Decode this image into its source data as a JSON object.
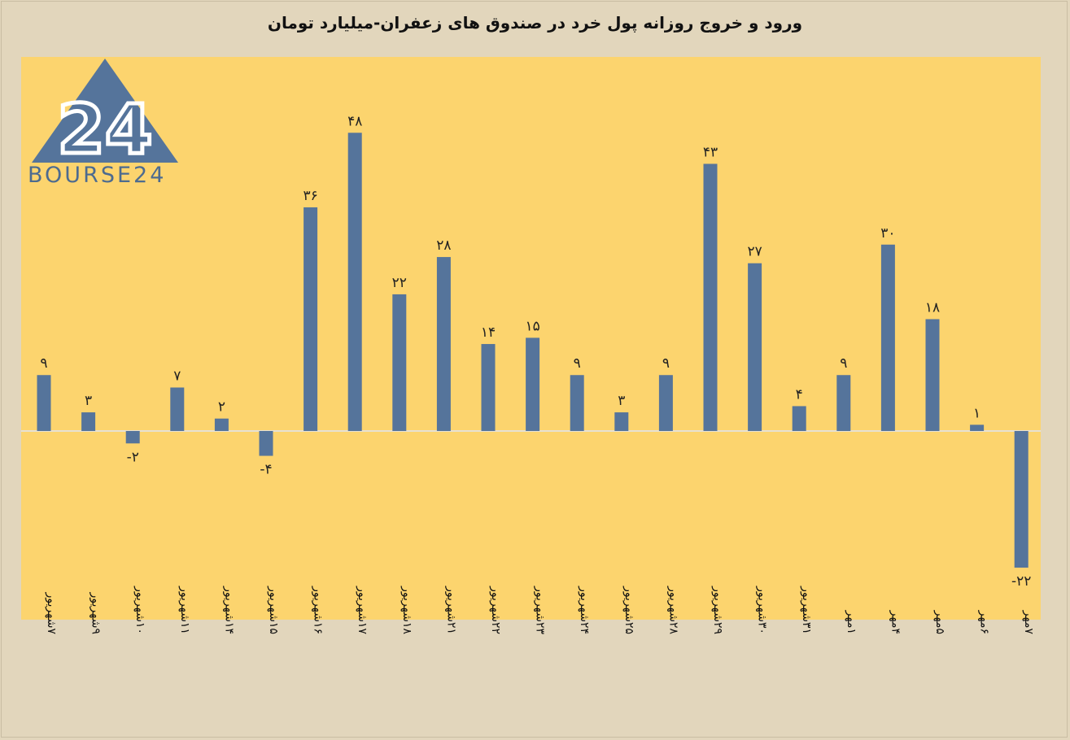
{
  "title": "ورود و خروج روزانه پول خرد در صندوق های زعفران-میلیارد تومان",
  "logo": {
    "text": "BOURSE24",
    "mark": "24"
  },
  "colors": {
    "bar": "#55749b",
    "plot_bg": "#fcd46e",
    "page_bg": "#e2d6bc"
  },
  "chart_data": {
    "type": "bar",
    "title": "ورود و خروج روزانه پول خرد در صندوق های زعفران-میلیارد تومان",
    "xlabel": "",
    "ylabel": "",
    "ylim": [
      -25,
      50
    ],
    "grid": false,
    "legend": "none",
    "categories": [
      "۷شهریور",
      "۹شهریور",
      "۱۰شهریور",
      "۱۱شهریور",
      "۱۴شهریور",
      "۱۵شهریور",
      "۱۶شهریور",
      "۱۷شهریور",
      "۱۸شهریور",
      "۲۱شهریور",
      "۲۲شهریور",
      "۲۳شهریور",
      "۲۴شهریور",
      "۲۵شهریور",
      "۲۸شهریور",
      "۲۹شهریور",
      "۳۰شهریور",
      "۳۱شهریور",
      "۱مهر",
      "۴مهر",
      "۵مهر",
      "۶مهر",
      "۷مهر"
    ],
    "values": [
      9,
      3,
      -2,
      7,
      2,
      -4,
      36,
      48,
      22,
      28,
      14,
      15,
      9,
      3,
      9,
      43,
      27,
      4,
      9,
      30,
      18,
      1,
      -22
    ],
    "data_labels": [
      "۹",
      "۳",
      "-۲",
      "۷",
      "۲",
      "-۴",
      "۳۶",
      "۴۸",
      "۲۲",
      "۲۸",
      "۱۴",
      "۱۵",
      "۹",
      "۳",
      "۹",
      "۴۳",
      "۲۷",
      "۴",
      "۹",
      "۳۰",
      "۱۸",
      "۱",
      "-۲۲"
    ]
  }
}
